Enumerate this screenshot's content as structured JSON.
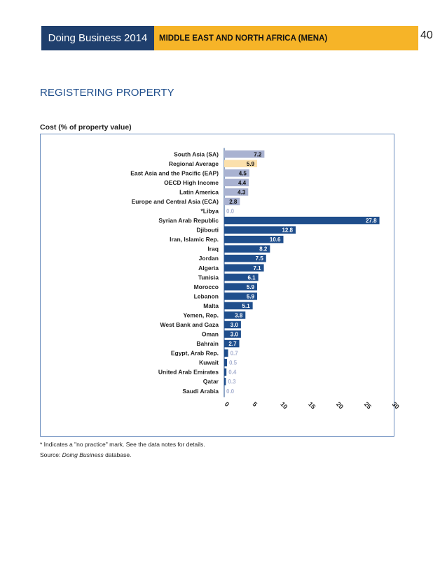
{
  "header": {
    "left_title": "Doing Business 2014",
    "right_title": "MIDDLE EAST AND NORTH AFRICA (MENA)",
    "page_number": "40"
  },
  "section_title": "REGISTERING PROPERTY",
  "chart_caption": "Cost (% of property value)",
  "footnotes": {
    "note": "* Indicates a \"no practice\" mark. See the data notes for details.",
    "source_prefix": "Source: ",
    "source_italic": "Doing Business",
    "source_suffix": " database."
  },
  "colors": {
    "header_blue": "#1f3f6d",
    "header_gold": "#f6b428",
    "benchmark_bar": "#a9b2d1",
    "regional_bar": "#fbe0ac",
    "country_bar": "#1f4e8c",
    "faded_value": "#a9b2d1"
  },
  "chart_data": {
    "type": "bar",
    "orientation": "horizontal",
    "title": "Cost (% of property value)",
    "xlabel": "",
    "ylabel": "",
    "xlim": [
      0,
      30
    ],
    "ticks": [
      "0",
      "5",
      "10",
      "15",
      "20",
      "25",
      "30"
    ],
    "tick_values": [
      0,
      5,
      10,
      15,
      20,
      25,
      30
    ],
    "categories": [
      "South Asia (SA)",
      "Regional Average",
      "East Asia and the Pacific (EAP)",
      "OECD High Income",
      "Latin America",
      "Europe and Central Asia (ECA)",
      "*Libya",
      "Syrian Arab Republic",
      "Djibouti",
      "Iran, Islamic Rep.",
      "Iraq",
      "Jordan",
      "Algeria",
      "Tunisia",
      "Morocco",
      "Lebanon",
      "Malta",
      "Yemen, Rep.",
      "West Bank and Gaza",
      "Oman",
      "Bahrain",
      "Egypt, Arab Rep.",
      "Kuwait",
      "United Arab Emirates",
      "Qatar",
      "Saudi Arabia"
    ],
    "values": [
      7.2,
      5.9,
      4.5,
      4.4,
      4.3,
      2.8,
      0.0,
      27.8,
      12.8,
      10.6,
      8.2,
      7.5,
      7.1,
      6.1,
      5.9,
      5.9,
      5.1,
      3.8,
      3.0,
      3.0,
      2.7,
      0.7,
      0.5,
      0.4,
      0.3,
      0.0
    ],
    "value_labels": [
      "7.2",
      "5.9",
      "4.5",
      "4.4",
      "4.3",
      "2.8",
      "0.0",
      "27.8",
      "12.8",
      "10.6",
      "8.2",
      "7.5",
      "7.1",
      "6.1",
      "5.9",
      "5.9",
      "5.1",
      "3.8",
      "3.0",
      "3.0",
      "2.7",
      "0.7",
      "0.5",
      "0.4",
      "0.3",
      "0.0"
    ],
    "groups": [
      "benchmark",
      "regional",
      "benchmark",
      "benchmark",
      "benchmark",
      "benchmark",
      "country",
      "country",
      "country",
      "country",
      "country",
      "country",
      "country",
      "country",
      "country",
      "country",
      "country",
      "country",
      "country",
      "country",
      "country",
      "country",
      "country",
      "country",
      "country",
      "country"
    ]
  }
}
